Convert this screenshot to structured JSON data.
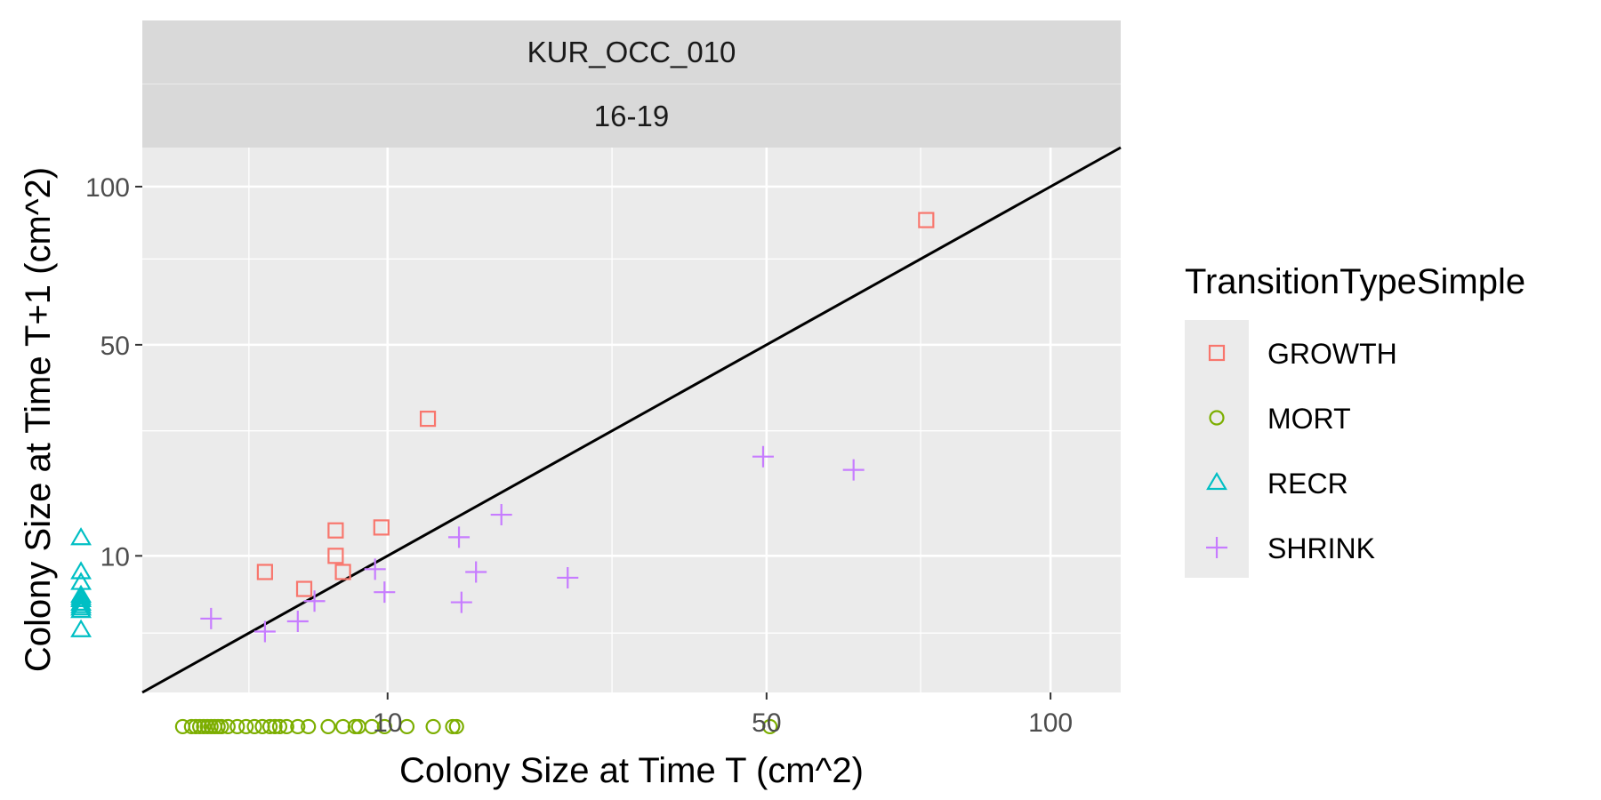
{
  "chart_data": {
    "type": "scatter",
    "facet": {
      "strip_top": "KUR_OCC_010",
      "strip_bottom": "16-19"
    },
    "xlabel": "Colony Size at Time T (cm^2)",
    "ylabel": "Colony Size at Time T+1 (cm^2)",
    "x_scale": "sqrt",
    "y_scale": "sqrt",
    "xlim": [
      0.4,
      115
    ],
    "ylim": [
      0.4,
      115
    ],
    "x_ticks": [
      10,
      50,
      100
    ],
    "y_ticks": [
      10,
      50,
      100
    ],
    "x_tick_labels": [
      "10",
      "50",
      "100"
    ],
    "y_tick_labels": [
      "10",
      "50",
      "100"
    ],
    "x_minor_ticks": [
      3,
      30,
      75
    ],
    "y_minor_ticks": [
      3,
      30,
      75
    ],
    "grid": true,
    "reference_line": {
      "slope": 1,
      "intercept": 0
    },
    "legend_title": "TransitionTypeSimple",
    "legend_position": "right",
    "series": [
      {
        "name": "GROWTH",
        "shape": "square",
        "color": "#F8766D",
        "points": [
          [
            3.6,
            8.2
          ],
          [
            5.3,
            6.5
          ],
          [
            6.9,
            13.2
          ],
          [
            6.9,
            10.0
          ],
          [
            7.3,
            8.2
          ],
          [
            9.6,
            13.6
          ],
          [
            12.8,
            32.5
          ],
          [
            76,
            88
          ]
        ]
      },
      {
        "name": "MORT",
        "shape": "circle",
        "color": "#7CAE00",
        "points": [
          [
            1.1,
            0
          ],
          [
            1.3,
            0
          ],
          [
            1.4,
            0
          ],
          [
            1.5,
            0
          ],
          [
            1.6,
            0
          ],
          [
            1.7,
            0
          ],
          [
            1.8,
            0
          ],
          [
            1.9,
            0
          ],
          [
            2.0,
            0
          ],
          [
            2.1,
            0
          ],
          [
            2.3,
            0
          ],
          [
            2.6,
            0
          ],
          [
            2.9,
            0
          ],
          [
            3.2,
            0
          ],
          [
            3.5,
            0
          ],
          [
            3.8,
            0
          ],
          [
            4.0,
            0
          ],
          [
            4.2,
            0
          ],
          [
            4.5,
            0
          ],
          [
            5.0,
            0
          ],
          [
            5.5,
            0
          ],
          [
            6.5,
            0
          ],
          [
            7.3,
            0
          ],
          [
            8.0,
            0
          ],
          [
            8.2,
            0
          ],
          [
            9.0,
            0
          ],
          [
            9.8,
            0
          ],
          [
            11.3,
            0
          ],
          [
            13.2,
            0
          ],
          [
            14.7,
            0
          ],
          [
            15.0,
            0
          ],
          [
            50.5,
            0
          ]
        ]
      },
      {
        "name": "RECR",
        "shape": "triangle",
        "color": "#00BFC4",
        "points": [
          [
            0,
            12.2
          ],
          [
            0,
            8.2
          ],
          [
            0,
            7.1
          ],
          [
            0,
            5.9
          ],
          [
            0,
            5.7
          ],
          [
            0,
            5.5
          ],
          [
            0,
            5.2
          ],
          [
            0,
            5.0
          ],
          [
            0,
            4.8
          ],
          [
            0,
            4.6
          ],
          [
            0,
            3.2
          ]
        ]
      },
      {
        "name": "SHRINK",
        "shape": "cross",
        "color": "#C77CFF",
        "points": [
          [
            1.8,
            4.0
          ],
          [
            3.6,
            3.1
          ],
          [
            5.0,
            3.8
          ],
          [
            5.8,
            5.4
          ],
          [
            9.2,
            8.5
          ],
          [
            9.8,
            6.2
          ],
          [
            15.2,
            12.3
          ],
          [
            15.4,
            5.3
          ],
          [
            16.6,
            8.2
          ],
          [
            18.8,
            15.4
          ],
          [
            25.2,
            7.6
          ],
          [
            49.5,
            25.0
          ],
          [
            63.5,
            22.6
          ]
        ]
      }
    ]
  }
}
